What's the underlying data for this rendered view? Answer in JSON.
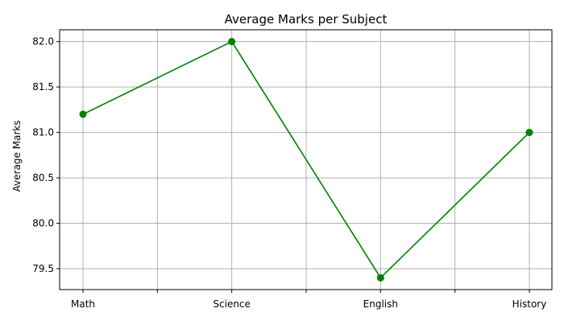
{
  "chart_data": {
    "type": "line",
    "title": "Average Marks per Subject",
    "xlabel": "",
    "ylabel": "Average Marks",
    "categories": [
      "Math",
      "Science",
      "English",
      "History"
    ],
    "series": [
      {
        "values": [
          81.2,
          82.0,
          79.4,
          81.0
        ],
        "color": "#008000",
        "marker": "circle"
      }
    ],
    "ylim": [
      79.27,
      82.13
    ],
    "yticks": [
      "79.5",
      "80.0",
      "80.5",
      "81.0",
      "81.5",
      "82.0"
    ],
    "grid": true,
    "legend": "none"
  }
}
